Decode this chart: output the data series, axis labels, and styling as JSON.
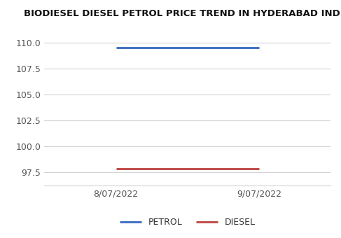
{
  "title": "BIODIESEL DIESEL PETROL PRICE TREND IN HYDERABAD INDIA",
  "dates": [
    "8/07/2022",
    "9/07/2022"
  ],
  "petrol_values": [
    109.49,
    109.49
  ],
  "diesel_values": [
    97.83,
    97.83
  ],
  "petrol_color": "#4472C4",
  "diesel_color": "#C0504D",
  "ylim": [
    96.2,
    111.8
  ],
  "yticks": [
    97.5,
    100.0,
    102.5,
    105.0,
    107.5,
    110.0
  ],
  "legend_labels": [
    "PETROL",
    "DIESEL"
  ],
  "title_fontsize": 9.5,
  "tick_fontsize": 9,
  "background_color": "#ffffff",
  "grid_color": "#d3d3d3",
  "linewidth": 2.2
}
